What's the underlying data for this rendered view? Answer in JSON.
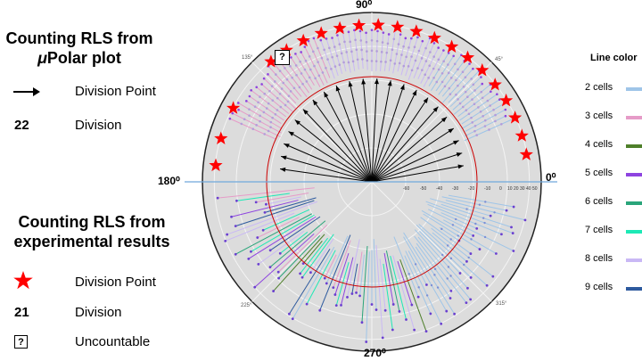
{
  "left_panel": {
    "upolar_title_line1": "Counting RLS from",
    "upolar_title_line2_symbol": "μ",
    "upolar_title_line2_text": "Polar plot",
    "arrow_label": "Division  Point",
    "division_count": "22",
    "division_label": "Division",
    "exp_title_line1": "Counting RLS from",
    "exp_title_line2": "experimental results",
    "star_label": "Division  Point",
    "exp_division_count": "21",
    "exp_division_label": "Division",
    "uncountable_symbol": "?",
    "uncountable_label": "Uncountable"
  },
  "polar_plot": {
    "label_90": "90⁰",
    "label_0": "0⁰",
    "label_180": "180⁰",
    "label_270": "270⁰",
    "inner_tick_135": "135°",
    "inner_tick_45": "45°",
    "inner_tick_225": "225°",
    "inner_tick_315": "315°",
    "radial_ticks": [
      "-60",
      "-50",
      "-40",
      "-30",
      "-20",
      "-10",
      "0",
      "10",
      "20",
      "30",
      "40",
      "50"
    ],
    "uncountable_marker": "?",
    "star_color": "#ff0000",
    "inner_circle_color": "#cc0000",
    "horizontal_line_color": "#6fa8dc"
  },
  "line_color_legend": {
    "title": "Line color",
    "items": [
      {
        "label": "2 cells",
        "color": "#9fc5e8"
      },
      {
        "label": "3 cells",
        "color": "#e69bc8"
      },
      {
        "label": "4 cells",
        "color": "#4e7f2a"
      },
      {
        "label": "5 cells",
        "color": "#8e44e0"
      },
      {
        "label": "6 cells",
        "color": "#2aa57a"
      },
      {
        "label": "7 cells",
        "color": "#1de9b6"
      },
      {
        "label": "8 cells",
        "color": "#c9b8f5"
      },
      {
        "label": "9 cells",
        "color": "#2d5a9e"
      }
    ]
  }
}
